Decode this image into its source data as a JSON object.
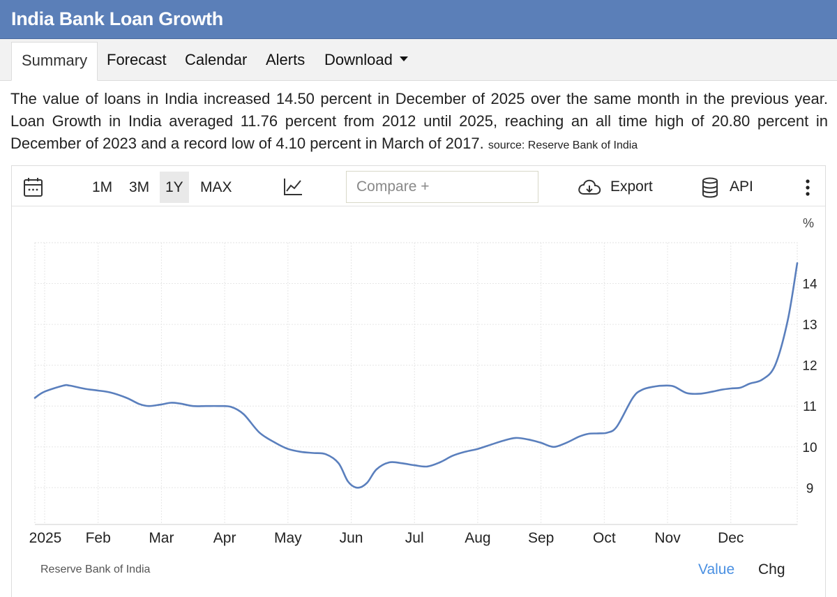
{
  "header": {
    "title": "India Bank Loan Growth"
  },
  "tabs": [
    {
      "label": "Summary"
    },
    {
      "label": "Forecast"
    },
    {
      "label": "Calendar"
    },
    {
      "label": "Alerts"
    },
    {
      "label": "Download"
    }
  ],
  "description": {
    "text": "The value of loans in India increased 14.50 percent in December of 2025 over the same month in the previous year. Loan Growth in India averaged 11.76 percent from 2012 until 2025, reaching an all time high of 20.80 percent in December of 2023 and a record low of 4.10 percent in March of 2017.",
    "source": "source: Reserve Bank of India"
  },
  "toolbar": {
    "ranges": [
      "1M",
      "3M",
      "1Y",
      "MAX"
    ],
    "active_range": "1Y",
    "compare_placeholder": "Compare +",
    "export_label": "Export",
    "api_label": "API",
    "icons": [
      "calendar-icon",
      "line-chart-icon",
      "cloud-download-icon",
      "database-icon",
      "more-vertical-icon"
    ]
  },
  "footer": {
    "source_label": "Reserve Bank of India",
    "value_label": "Value",
    "chg_label": "Chg",
    "value_color": "#4a90e2"
  },
  "chart_data": {
    "type": "line",
    "unit": "%",
    "line_color": "#5a7fbd",
    "x_ticks": [
      "2025",
      "Feb",
      "Mar",
      "Apr",
      "May",
      "Jun",
      "Jul",
      "Aug",
      "Sep",
      "Oct",
      "Nov",
      "Dec"
    ],
    "y_ticks": [
      9,
      10,
      11,
      12,
      13,
      14
    ],
    "ylim": [
      8.1,
      15.0
    ],
    "xlim": [
      0,
      12.05
    ],
    "grid": true,
    "series": [
      {
        "x": [
          0.0,
          0.15,
          0.45,
          0.55,
          0.8,
          1.0,
          1.2,
          1.45,
          1.65,
          1.8,
          2.0,
          2.15,
          2.3,
          2.5,
          2.7,
          2.9,
          3.1,
          3.3,
          3.55,
          3.8,
          4.0,
          4.2,
          4.4,
          4.6,
          4.8,
          4.95,
          5.1,
          5.25,
          5.4,
          5.6,
          5.8,
          6.0,
          6.2,
          6.4,
          6.6,
          6.8,
          7.0,
          7.2,
          7.4,
          7.6,
          7.8,
          8.0,
          8.2,
          8.4,
          8.6,
          8.75,
          8.9,
          9.05,
          9.2,
          9.45,
          9.6,
          9.8,
          9.95,
          10.1,
          10.3,
          10.5,
          10.7,
          10.85,
          11.0,
          11.15,
          11.3,
          11.5,
          11.7,
          11.9,
          12.05
        ],
        "values": [
          11.2,
          11.35,
          11.5,
          11.5,
          11.42,
          11.38,
          11.33,
          11.2,
          11.05,
          11.0,
          11.04,
          11.08,
          11.06,
          11.0,
          11.0,
          11.0,
          10.98,
          10.8,
          10.35,
          10.1,
          9.95,
          9.88,
          9.85,
          9.82,
          9.6,
          9.15,
          9.0,
          9.12,
          9.45,
          9.62,
          9.6,
          9.55,
          9.52,
          9.62,
          9.78,
          9.88,
          9.95,
          10.05,
          10.15,
          10.22,
          10.18,
          10.1,
          10.0,
          10.1,
          10.25,
          10.32,
          10.33,
          10.35,
          10.5,
          11.2,
          11.4,
          11.48,
          11.5,
          11.48,
          11.32,
          11.3,
          11.35,
          11.4,
          11.43,
          11.45,
          11.55,
          11.65,
          12.0,
          13.1,
          14.5
        ]
      }
    ]
  }
}
